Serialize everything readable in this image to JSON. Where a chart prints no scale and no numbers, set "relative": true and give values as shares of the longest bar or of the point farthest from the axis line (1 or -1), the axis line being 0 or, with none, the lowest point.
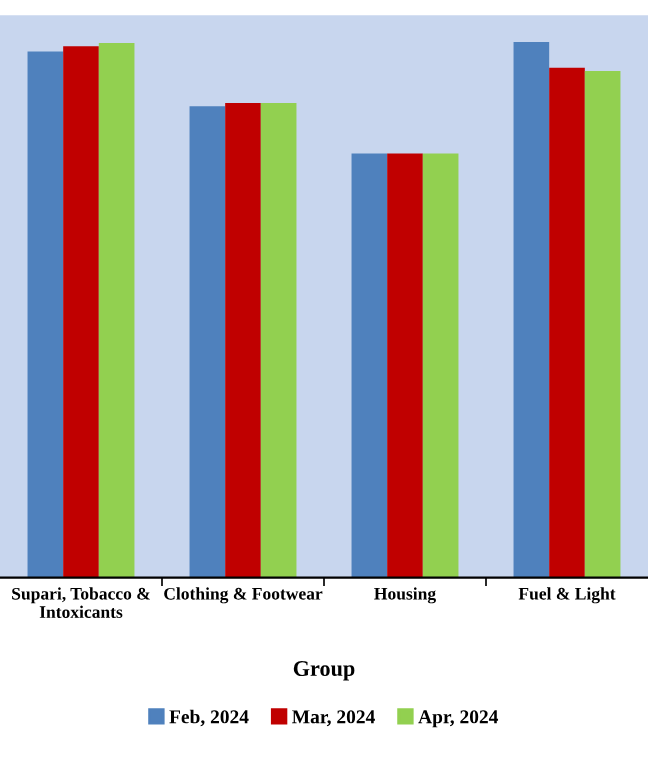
{
  "chart_data": {
    "type": "bar",
    "relative": true,
    "xlabel": "Group",
    "categories": [
      "Supari, Tobacco & Intoxicants",
      "Clothing & Footwear",
      "Housing",
      "Fuel & Light"
    ],
    "series": [
      {
        "name": "Feb, 2024",
        "color": "#4f81bd",
        "values": [
          0.982,
          0.88,
          0.792,
          1.0
        ]
      },
      {
        "name": "Mar, 2024",
        "color": "#c00000",
        "values": [
          0.992,
          0.886,
          0.792,
          0.952
        ]
      },
      {
        "name": "Apr, 2024",
        "color": "#92d050",
        "values": [
          0.998,
          0.886,
          0.792,
          0.946
        ]
      }
    ],
    "legend": "bottom",
    "grid": false
  }
}
